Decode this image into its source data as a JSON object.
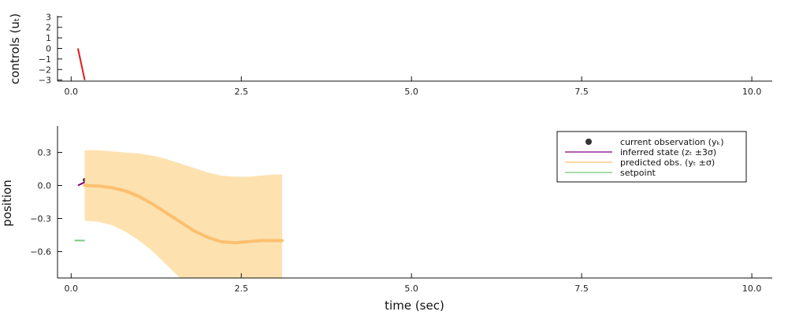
{
  "chart_data": [
    {
      "type": "line",
      "ylabel": "controls (uₜ)",
      "xlim": [
        -0.2,
        10.3
      ],
      "ylim": [
        -3.1,
        3.1
      ],
      "xticks": [
        "0.0",
        "2.5",
        "5.0",
        "7.5",
        "10.0"
      ],
      "yticks": [
        "3",
        "2",
        "1",
        "0",
        "−1",
        "−2",
        "−3"
      ],
      "series": [
        {
          "color": "#e31a1c",
          "x": [
            0.1,
            0.2
          ],
          "y": [
            0.0,
            -3.0
          ]
        }
      ],
      "grid": false
    },
    {
      "type": "line",
      "xlabel": "time (sec)",
      "ylabel": "position",
      "xlim": [
        -0.2,
        10.3
      ],
      "ylim": [
        -0.84,
        0.54
      ],
      "xticks": [
        "0.0",
        "2.5",
        "5.0",
        "7.5",
        "10.0"
      ],
      "yticks": [
        "0.3",
        "0.0",
        "−0.3",
        "−0.6"
      ],
      "legend_position": "top-right",
      "legend": [
        {
          "label": "current observation (yₖ)",
          "marker": "dot",
          "color": "#333333"
        },
        {
          "label": "inferred state (zₜ ±3σ)",
          "marker": "line",
          "color": "#800080"
        },
        {
          "label": "predicted obs. (yₜ ±σ)",
          "marker": "line",
          "color": "#fdbf6f"
        },
        {
          "label": "setpoint",
          "marker": "line",
          "color": "#7bc67b"
        }
      ],
      "series": [
        {
          "kind": "scatter",
          "color": "#333333",
          "x": [
            0.2
          ],
          "y": [
            0.05
          ]
        },
        {
          "kind": "line",
          "color": "#800080",
          "x": [
            0.1,
            0.2
          ],
          "y": [
            0.0,
            0.03
          ]
        },
        {
          "kind": "band_line",
          "color": "#fdbf6f",
          "band_color": "#fde2b0",
          "x": [
            0.2,
            0.4,
            0.6,
            0.8,
            1.0,
            1.2,
            1.4,
            1.6,
            1.8,
            2.0,
            2.2,
            2.4,
            2.6,
            2.8,
            3.0,
            3.1
          ],
          "y": [
            0.0,
            -0.005,
            -0.02,
            -0.05,
            -0.1,
            -0.17,
            -0.25,
            -0.33,
            -0.41,
            -0.47,
            -0.51,
            -0.52,
            -0.51,
            -0.5,
            -0.5,
            -0.5
          ],
          "upper": [
            0.32,
            0.32,
            0.31,
            0.3,
            0.29,
            0.27,
            0.24,
            0.2,
            0.16,
            0.12,
            0.09,
            0.08,
            0.08,
            0.09,
            0.1,
            0.1
          ],
          "lower": [
            -0.32,
            -0.33,
            -0.36,
            -0.42,
            -0.5,
            -0.6,
            -0.72,
            -0.84,
            -0.84,
            -0.84,
            -0.84,
            -0.84,
            -0.84,
            -0.84,
            -0.84,
            -0.84
          ]
        },
        {
          "kind": "line",
          "color": "#7bc67b",
          "x": [
            0.05,
            0.2
          ],
          "y": [
            -0.5,
            -0.5
          ]
        }
      ],
      "grid": false
    }
  ]
}
